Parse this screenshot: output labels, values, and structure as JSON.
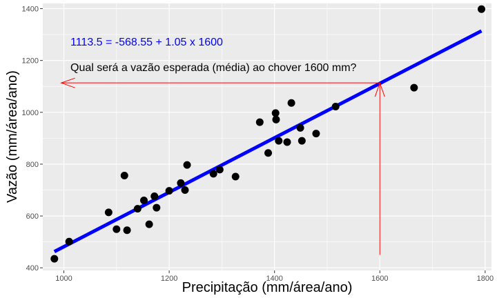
{
  "chart_data": {
    "type": "scatter",
    "title": "",
    "xlabel": "Precipitação (mm/área/ano)",
    "ylabel": "Vazão (mm/área/ano)",
    "xlim": [
      960,
      1812
    ],
    "ylim": [
      390,
      1420
    ],
    "x_ticks": [
      1000,
      1200,
      1400,
      1600,
      1800
    ],
    "y_ticks": [
      400,
      600,
      800,
      1000,
      1200,
      1400
    ],
    "grid": true,
    "background_color": "#ebebeb",
    "grid_color": "#ffffff",
    "point_color": "#000000",
    "points": [
      {
        "x": 982,
        "y": 435
      },
      {
        "x": 1010,
        "y": 501
      },
      {
        "x": 1085,
        "y": 614
      },
      {
        "x": 1100,
        "y": 549
      },
      {
        "x": 1115,
        "y": 756
      },
      {
        "x": 1120,
        "y": 545
      },
      {
        "x": 1140,
        "y": 628
      },
      {
        "x": 1152,
        "y": 660
      },
      {
        "x": 1162,
        "y": 568
      },
      {
        "x": 1172,
        "y": 676
      },
      {
        "x": 1176,
        "y": 632
      },
      {
        "x": 1200,
        "y": 697
      },
      {
        "x": 1222,
        "y": 727
      },
      {
        "x": 1230,
        "y": 700
      },
      {
        "x": 1234,
        "y": 797
      },
      {
        "x": 1284,
        "y": 763
      },
      {
        "x": 1296,
        "y": 779
      },
      {
        "x": 1326,
        "y": 752
      },
      {
        "x": 1372,
        "y": 962
      },
      {
        "x": 1388,
        "y": 843
      },
      {
        "x": 1402,
        "y": 997
      },
      {
        "x": 1403,
        "y": 972
      },
      {
        "x": 1408,
        "y": 890
      },
      {
        "x": 1424,
        "y": 885
      },
      {
        "x": 1432,
        "y": 1036
      },
      {
        "x": 1449,
        "y": 940
      },
      {
        "x": 1452,
        "y": 890
      },
      {
        "x": 1479,
        "y": 918
      },
      {
        "x": 1516,
        "y": 1022
      },
      {
        "x": 1665,
        "y": 1095
      },
      {
        "x": 1793,
        "y": 1398
      }
    ],
    "regression": {
      "intercept": -568.55,
      "slope": 1.05,
      "x_start": 982,
      "x_end": 1793,
      "color": "#0000ff"
    },
    "prediction": {
      "x": 1600,
      "y": 1113.5,
      "color": "#ff0000",
      "vertical_from_y": 450,
      "horizontal_to_x": 995
    },
    "annotations": {
      "equation": "1113.5 = -568.55 + 1.05 x 1600",
      "question": "Qual será a vazão esperada (média) ao chover 1600 mm?"
    }
  }
}
